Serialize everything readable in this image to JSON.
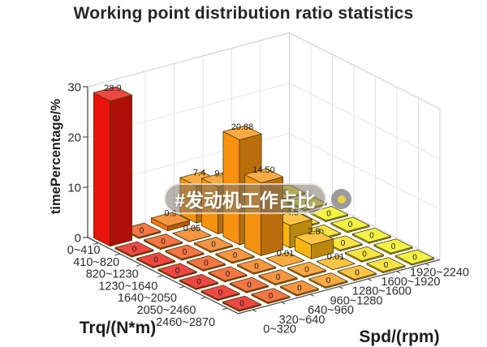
{
  "chart_data": {
    "type": "bar",
    "projection": "3d",
    "title": "Working point distribution ratio statistics",
    "xlabel": "Spd/(rpm)",
    "ylabel": "Trq/(N*m)",
    "zlabel": "timePercentage/%",
    "zlim": [
      0,
      30
    ],
    "zticks": [
      "0",
      "10",
      "20",
      "30"
    ],
    "spd_categories": [
      "0~320",
      "320~640",
      "640~960",
      "960~1280",
      "1280~1600",
      "1600~1920",
      "1920~2240"
    ],
    "trq_categories": [
      "0~410",
      "410~820",
      "820~1230",
      "1230~1640",
      "1640~2050",
      "2050~2460",
      "2460~2870"
    ],
    "values": [
      [
        28.9,
        0,
        0.9,
        7.4,
        0,
        0,
        0
      ],
      [
        0,
        0,
        0.05,
        9.4,
        1.2,
        0,
        0
      ],
      [
        0,
        0,
        0,
        20.88,
        5.5,
        0,
        0
      ],
      [
        0,
        0,
        0,
        14.5,
        4.5,
        0,
        0
      ],
      [
        0,
        0,
        0,
        0.01,
        2.8,
        0,
        0
      ],
      [
        0,
        0,
        0,
        0,
        0.01,
        0,
        0
      ],
      [
        0,
        0,
        0,
        0,
        0,
        0,
        0
      ]
    ],
    "bar_labels": [
      [
        "28.9",
        "0",
        "0.9",
        "7.4",
        "0",
        "0",
        "0"
      ],
      [
        "0",
        "0",
        "0.05",
        "9.4",
        "1.2",
        "0",
        "0"
      ],
      [
        "0",
        "0",
        "0",
        "20.88",
        "5.5",
        "0",
        "0"
      ],
      [
        "0",
        "0",
        "0",
        "14.50",
        "4.5",
        "0",
        "0"
      ],
      [
        "0",
        "0",
        "0",
        "0.01",
        "2.8",
        "0",
        "0"
      ],
      [
        "0",
        "0",
        "0",
        "0",
        "0.01",
        "0",
        "0"
      ],
      [
        "0",
        "0",
        "0",
        "0",
        "0",
        "0",
        "0"
      ]
    ],
    "column_colors_by_spd": [
      "#e8140c",
      "#f04f0e",
      "#f4770d",
      "#f6920f",
      "#f8b511",
      "#f2dc0e",
      "#eef011"
    ],
    "grid": true,
    "legend": "none"
  },
  "watermark": {
    "text": "#发动机工作占比",
    "pill_color": "rgba(124,116,106,0.55)",
    "text_color": "#ffffff",
    "badge_color": "#8b8b8b",
    "badge_dot_color": "#e9d34a"
  }
}
